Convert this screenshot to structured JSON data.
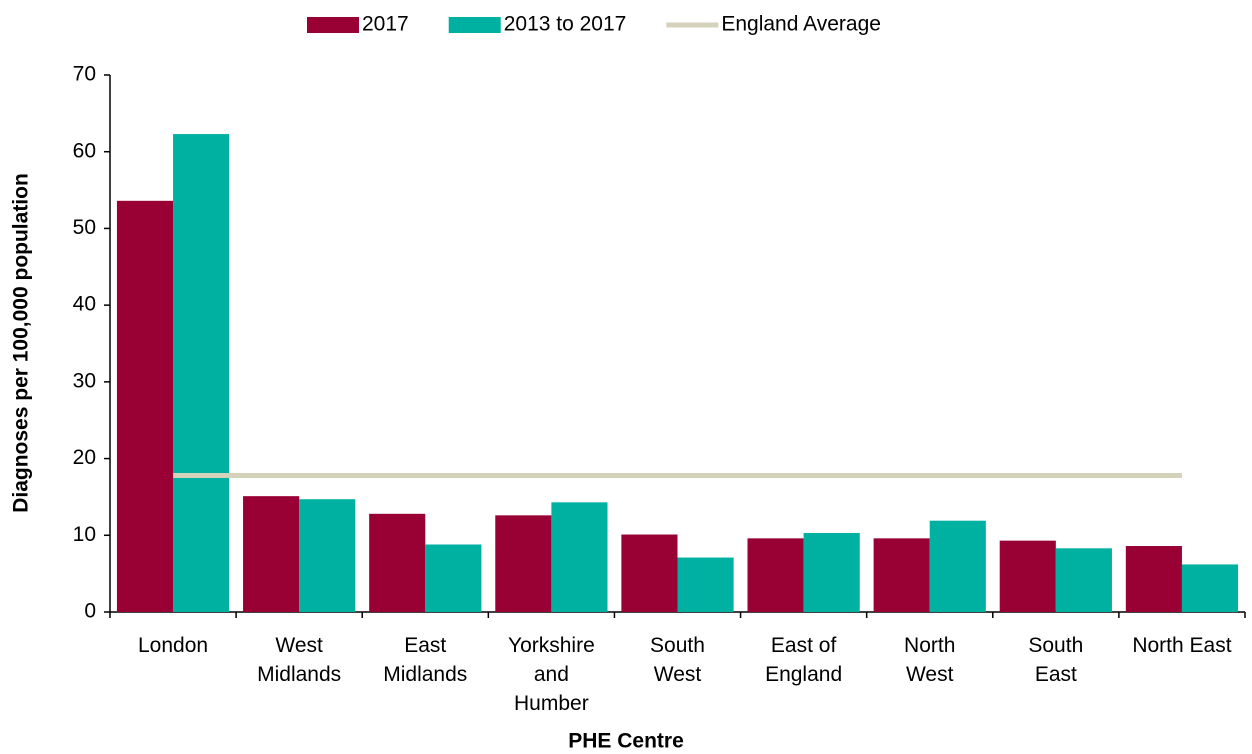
{
  "chart_data": {
    "type": "bar",
    "x_label": "PHE Centre",
    "y_label": "Diagnoses per 100,000 population",
    "categories": [
      "London",
      "West Midlands",
      "East Midlands",
      "Yorkshire and Humber",
      "South West",
      "East of England",
      "North West",
      "South East",
      "North East"
    ],
    "series": [
      {
        "name": "2017",
        "type": "bar",
        "color": "#990033",
        "values": [
          53.6,
          15.1,
          12.8,
          12.6,
          10.1,
          9.6,
          9.6,
          9.3,
          8.6
        ]
      },
      {
        "name": "2013 to 2017",
        "type": "bar",
        "color": "#00b0a0",
        "values": [
          62.3,
          14.7,
          8.8,
          14.3,
          7.1,
          10.3,
          11.9,
          8.3,
          6.2
        ]
      },
      {
        "name": "England Average",
        "type": "line",
        "color": "#d4d2bb",
        "values": [
          17.8,
          17.8,
          17.8,
          17.8,
          17.8,
          17.8,
          17.8,
          17.8,
          17.8
        ]
      }
    ],
    "ylim": [
      0,
      70
    ],
    "yticks": [
      0,
      10,
      20,
      30,
      40,
      50,
      60,
      70
    ],
    "legend": "top",
    "grid": false
  }
}
